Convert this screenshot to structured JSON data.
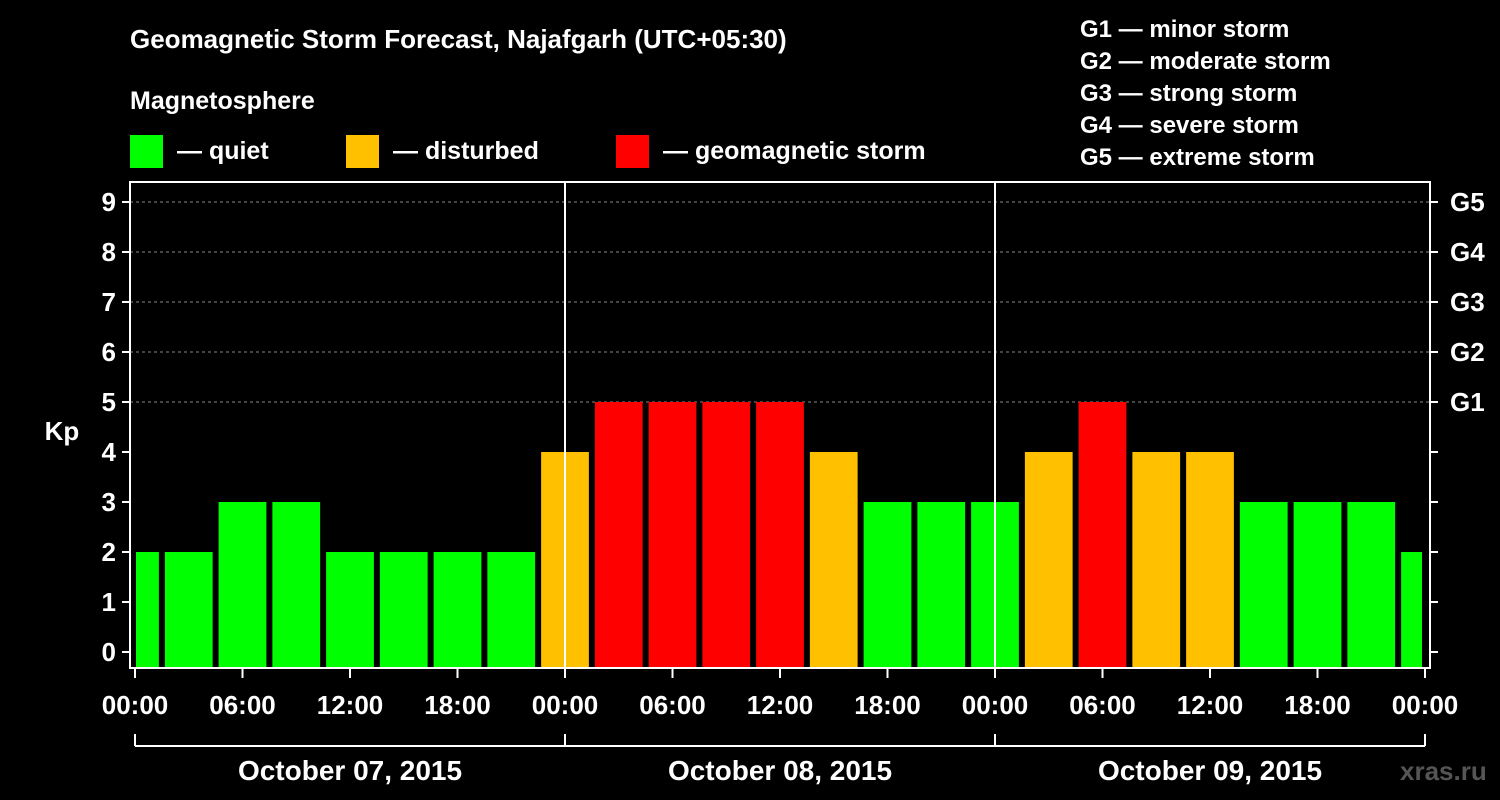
{
  "chart_data": {
    "type": "bar",
    "title": "Geomagnetic Storm Forecast, Najafgarh (UTC+05:30)",
    "ylabel": "Kp",
    "ylim": [
      0,
      9
    ],
    "yticks": [
      "0",
      "1",
      "2",
      "3",
      "4",
      "5",
      "6",
      "7",
      "8",
      "9"
    ],
    "right_ticks": [
      {
        "kp": 5,
        "label": "G1"
      },
      {
        "kp": 6,
        "label": "G2"
      },
      {
        "kp": 7,
        "label": "G3"
      },
      {
        "kp": 8,
        "label": "G4"
      },
      {
        "kp": 9,
        "label": "G5"
      }
    ],
    "x_tick_labels": [
      "00:00",
      "06:00",
      "12:00",
      "18:00",
      "00:00",
      "06:00",
      "12:00",
      "18:00",
      "00:00",
      "06:00",
      "12:00",
      "18:00",
      "00:00"
    ],
    "days": [
      "October 07, 2015",
      "October 08, 2015",
      "October 09, 2015"
    ],
    "hours_span": 72,
    "interval_hours": 3,
    "first_interval_start_hour": -1.5,
    "values": [
      2,
      2,
      3,
      3,
      2,
      2,
      2,
      2,
      4,
      5,
      5,
      5,
      5,
      4,
      3,
      3,
      3,
      4,
      5,
      4,
      4,
      3,
      3,
      3,
      2
    ],
    "grid": "horizontal dashed at Kp 5-9",
    "colors": {
      "quiet": "#00ff00",
      "disturbed": "#ffc000",
      "storm": "#ff0000"
    },
    "legend": {
      "heading": "Magnetosphere",
      "items": [
        {
          "key": "quiet",
          "label": "— quiet",
          "color": "#00ff00"
        },
        {
          "key": "disturbed",
          "label": "— disturbed",
          "color": "#ffc000"
        },
        {
          "key": "storm",
          "label": "— geomagnetic storm",
          "color": "#ff0000"
        }
      ]
    },
    "g_scale": [
      "G1 — minor storm",
      "G2 — moderate storm",
      "G3 — strong storm",
      "G4 — severe storm",
      "G5 — extreme storm"
    ]
  },
  "credit": "xras.ru"
}
